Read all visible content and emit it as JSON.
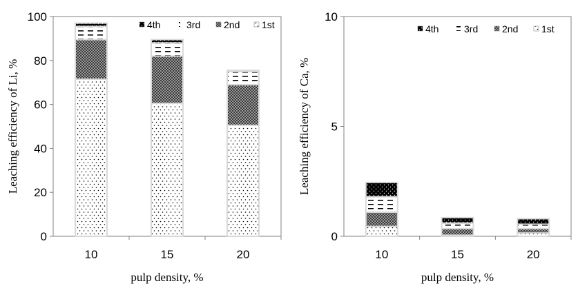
{
  "chart_data": [
    {
      "type": "bar",
      "stacked": true,
      "title": "",
      "xlabel": "pulp density, %",
      "ylabel": "Leaching efficiency of Li, %",
      "categories": [
        "10",
        "15",
        "20"
      ],
      "ylim": [
        0,
        100
      ],
      "yticks": [
        "0",
        "20",
        "40",
        "60",
        "80",
        "100"
      ],
      "grid": false,
      "legend_position": "top-right",
      "series": [
        {
          "name": "1st",
          "values": [
            71.5,
            60.5,
            50.5
          ],
          "pattern": "dots"
        },
        {
          "name": "2nd",
          "values": [
            18.0,
            21.5,
            18.5
          ],
          "pattern": "crosshatch"
        },
        {
          "name": "3rd",
          "values": [
            6.0,
            6.0,
            6.0
          ],
          "pattern": "dashes"
        },
        {
          "name": "4th",
          "values": [
            1.5,
            1.5,
            0.5
          ],
          "pattern": "solid-dots"
        }
      ]
    },
    {
      "type": "bar",
      "stacked": true,
      "title": "",
      "xlabel": "pulp density, %",
      "ylabel": "Leaching efficiency of Ca, %",
      "categories": [
        "10",
        "15",
        "20"
      ],
      "ylim": [
        0,
        10
      ],
      "yticks": [
        "0",
        "5",
        "10"
      ],
      "grid": false,
      "legend_position": "top-right",
      "series": [
        {
          "name": "1st",
          "values": [
            0.45,
            0.05,
            0.15
          ],
          "pattern": "dots"
        },
        {
          "name": "2nd",
          "values": [
            0.65,
            0.3,
            0.2
          ],
          "pattern": "crosshatch"
        },
        {
          "name": "3rd",
          "values": [
            0.7,
            0.25,
            0.2
          ],
          "pattern": "dashes"
        },
        {
          "name": "4th",
          "values": [
            0.65,
            0.25,
            0.25
          ],
          "pattern": "solid-dots"
        }
      ]
    }
  ]
}
